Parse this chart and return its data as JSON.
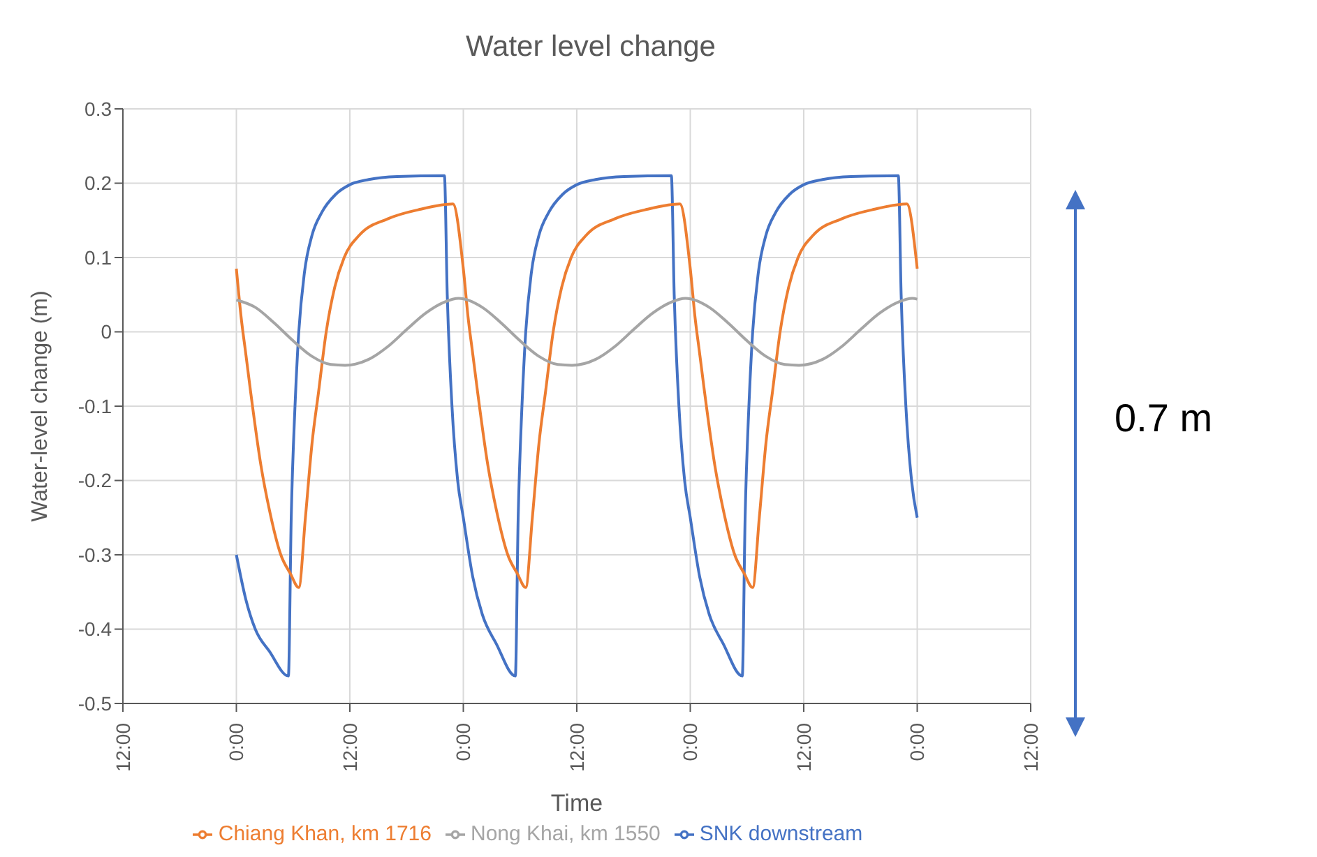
{
  "chart_data": {
    "type": "line",
    "title": "Water level change",
    "xlabel": "Time",
    "ylabel": "Water-level change (m)",
    "xlim": [
      "--01-01T12:00",
      "--01-05T12:00"
    ],
    "xticks": [
      {
        "value": "--01-01T12:00",
        "label": "12:00"
      },
      {
        "value": "--01-02T00:00",
        "label": "0:00"
      },
      {
        "value": "--01-02T12:00",
        "label": "12:00"
      },
      {
        "value": "--01-03T00:00",
        "label": "0:00"
      },
      {
        "value": "--01-03T12:00",
        "label": "12:00"
      },
      {
        "value": "--01-04T00:00",
        "label": "0:00"
      },
      {
        "value": "--01-04T12:00",
        "label": "12:00"
      },
      {
        "value": "--01-05T00:00",
        "label": "0:00"
      },
      {
        "value": "--01-05T12:00",
        "label": "12:00"
      }
    ],
    "ylim": [
      -0.5,
      0.3
    ],
    "yticks": [
      -0.5,
      -0.4,
      -0.3,
      -0.2,
      -0.1,
      0,
      0.1,
      0.2,
      0.3
    ],
    "grid": true,
    "legend": "bottom",
    "marker": "none",
    "line_style": "solid",
    "annotations": [
      "0.7 m"
    ],
    "series": [
      {
        "name": "SNK downstream",
        "color": "#4472c4",
        "x": [
          "--01-02T00:00",
          "--01-02T01:00",
          "--01-02T02:00",
          "--01-02T03:30",
          "--01-02T05:30",
          "--01-02T05:48",
          "--01-02T06:12",
          "--01-02T06:36",
          "--01-02T07:12",
          "--01-02T08:00",
          "--01-02T09:00",
          "--01-02T10:30",
          "--01-02T12:00",
          "--01-02T14:00",
          "--01-02T17:00",
          "--01-02T22:00",
          "--01-02T22:18",
          "--01-02T22:48",
          "--01-02T23:24",
          "--01-03T00:00",
          "--01-03T01:00",
          "--01-03T02:00",
          "--01-03T03:30",
          "--01-03T05:30",
          "--01-03T05:48",
          "--01-03T06:12",
          "--01-03T06:36",
          "--01-03T07:12",
          "--01-03T08:00",
          "--01-03T09:00",
          "--01-03T10:30",
          "--01-03T12:00",
          "--01-03T14:00",
          "--01-03T17:00",
          "--01-03T22:00",
          "--01-03T22:18",
          "--01-03T22:48",
          "--01-03T23:24",
          "--01-04T00:00",
          "--01-04T01:00",
          "--01-04T02:00",
          "--01-04T03:30",
          "--01-04T05:30",
          "--01-04T05:48",
          "--01-04T06:12",
          "--01-04T06:36",
          "--01-04T07:12",
          "--01-04T08:00",
          "--01-04T09:00",
          "--01-04T10:30",
          "--01-04T12:00",
          "--01-04T14:00",
          "--01-04T17:00",
          "--01-04T22:00",
          "--01-04T22:18",
          "--01-04T22:48",
          "--01-04T23:24",
          "--01-05T00:00"
        ],
        "values": [
          -0.3,
          -0.36,
          -0.4,
          -0.43,
          -0.463,
          -0.25,
          -0.1,
          0,
          0.08,
          0.13,
          0.16,
          0.185,
          0.198,
          0.205,
          0.209,
          0.21,
          0.05,
          -0.1,
          -0.2,
          -0.25,
          -0.33,
          -0.38,
          -0.42,
          -0.463,
          -0.25,
          -0.1,
          0,
          0.08,
          0.13,
          0.16,
          0.185,
          0.198,
          0.205,
          0.209,
          0.21,
          0.05,
          -0.1,
          -0.2,
          -0.25,
          -0.33,
          -0.38,
          -0.42,
          -0.463,
          -0.25,
          -0.1,
          0,
          0.08,
          0.13,
          0.16,
          0.185,
          0.198,
          0.205,
          0.209,
          0.21,
          0.05,
          -0.1,
          -0.2,
          -0.25
        ]
      },
      {
        "name": "Chiang Khan, km 1716",
        "color": "#ed7d31",
        "x": [
          "--01-02T00:00",
          "--01-02T00:30",
          "--01-02T01:00",
          "--01-02T01:30",
          "--01-02T02:36",
          "--01-02T03:30",
          "--01-02T04:42",
          "--01-02T05:42",
          "--01-02T06:36",
          "--01-02T07:18",
          "--01-02T08:00",
          "--01-02T08:42",
          "--01-02T09:30",
          "--01-02T10:24",
          "--01-02T11:24",
          "--01-02T13:00",
          "--01-02T16:00",
          "--01-02T19:30",
          "--01-02T22:54",
          "--01-03T00:00",
          "--01-03T00:30",
          "--01-03T01:00",
          "--01-03T01:30",
          "--01-03T02:36",
          "--01-03T03:30",
          "--01-03T04:42",
          "--01-03T05:42",
          "--01-03T06:36",
          "--01-03T07:18",
          "--01-03T08:00",
          "--01-03T08:42",
          "--01-03T09:30",
          "--01-03T10:24",
          "--01-03T11:24",
          "--01-03T13:00",
          "--01-03T16:00",
          "--01-03T19:30",
          "--01-03T22:54",
          "--01-04T00:00",
          "--01-04T00:30",
          "--01-04T01:00",
          "--01-04T01:30",
          "--01-04T02:36",
          "--01-04T03:30",
          "--01-04T04:42",
          "--01-04T05:42",
          "--01-04T06:36",
          "--01-04T07:18",
          "--01-04T08:00",
          "--01-04T08:42",
          "--01-04T09:30",
          "--01-04T10:24",
          "--01-04T11:24",
          "--01-04T13:00",
          "--01-04T16:00",
          "--01-04T19:30",
          "--01-04T22:54",
          "--01-05T00:00"
        ],
        "values": [
          0.085,
          0.02,
          -0.03,
          -0.08,
          -0.18,
          -0.24,
          -0.3,
          -0.325,
          -0.344,
          -0.25,
          -0.15,
          -0.08,
          0,
          0.06,
          0.1,
          0.13,
          0.152,
          0.165,
          0.172,
          0.085,
          0.02,
          -0.03,
          -0.08,
          -0.18,
          -0.24,
          -0.3,
          -0.325,
          -0.344,
          -0.25,
          -0.15,
          -0.08,
          0,
          0.06,
          0.1,
          0.13,
          0.152,
          0.165,
          0.172,
          0.085,
          0.02,
          -0.03,
          -0.08,
          -0.18,
          -0.24,
          -0.3,
          -0.325,
          -0.344,
          -0.25,
          -0.15,
          -0.08,
          0,
          0.06,
          0.1,
          0.13,
          0.152,
          0.165,
          0.172,
          0.085
        ]
      },
      {
        "name": "Nong Khai, km 1550",
        "color": "#a5a5a5",
        "x": [
          "--01-02T00:00",
          "--01-02T02:00",
          "--01-02T04:00",
          "--01-02T06:00",
          "--01-02T08:00",
          "--01-02T10:00",
          "--01-02T11:30",
          "--01-02T14:00",
          "--01-02T16:00",
          "--01-02T18:00",
          "--01-02T20:00",
          "--01-02T22:00",
          "--01-02T23:30",
          "--01-03T02:00",
          "--01-03T04:00",
          "--01-03T06:00",
          "--01-03T08:00",
          "--01-03T10:00",
          "--01-03T11:30",
          "--01-03T14:00",
          "--01-03T16:00",
          "--01-03T18:00",
          "--01-03T20:00",
          "--01-03T22:00",
          "--01-03T23:30",
          "--01-04T02:00",
          "--01-04T04:00",
          "--01-04T06:00",
          "--01-04T08:00",
          "--01-04T10:00",
          "--01-04T11:30",
          "--01-04T14:00",
          "--01-04T16:00",
          "--01-04T18:00",
          "--01-04T20:00",
          "--01-04T22:00",
          "--01-04T23:30",
          "--01-05T00:00"
        ],
        "values": [
          0.043,
          0.033,
          0.012,
          -0.012,
          -0.033,
          -0.044,
          -0.045,
          -0.037,
          -0.02,
          0.003,
          0.025,
          0.04,
          0.045,
          0.033,
          0.012,
          -0.012,
          -0.033,
          -0.044,
          -0.045,
          -0.037,
          -0.02,
          0.003,
          0.025,
          0.04,
          0.045,
          0.033,
          0.012,
          -0.012,
          -0.033,
          -0.044,
          -0.045,
          -0.037,
          -0.02,
          0.003,
          0.025,
          0.04,
          0.045,
          0.044
        ]
      }
    ]
  }
}
